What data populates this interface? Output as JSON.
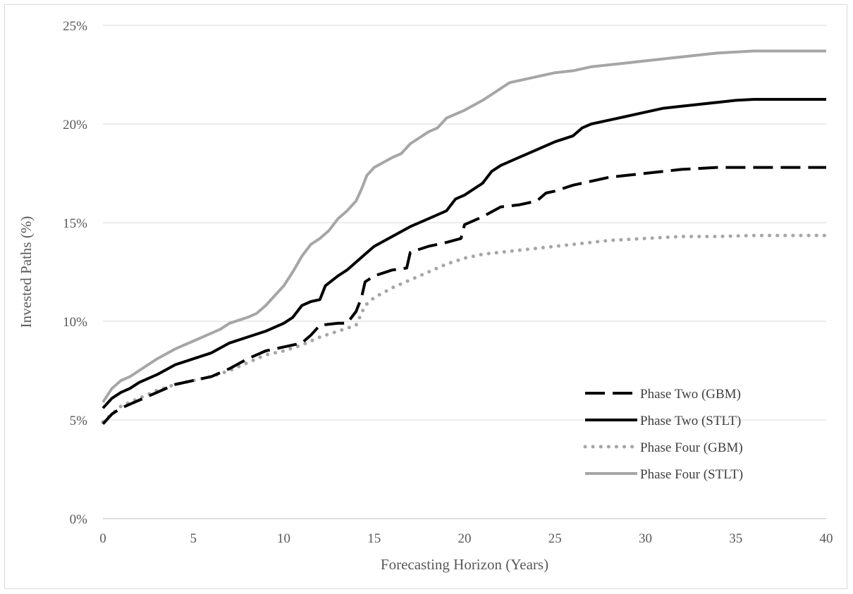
{
  "chart_data": {
    "type": "line",
    "title": "",
    "xlabel": "Forecasting Horizon (Years)",
    "ylabel": "Invested Paths (%)",
    "xlim": [
      0,
      40
    ],
    "ylim": [
      0,
      25
    ],
    "xticks": [
      0,
      5,
      10,
      15,
      20,
      25,
      30,
      35,
      40
    ],
    "xtick_labels": [
      "0",
      "5",
      "10",
      "15",
      "20",
      "25",
      "30",
      "35",
      "40"
    ],
    "yticks": [
      0,
      5,
      10,
      15,
      20,
      25
    ],
    "ytick_labels": [
      "0%",
      "5%",
      "10%",
      "15%",
      "20%",
      "25%"
    ],
    "grid": "horizontal",
    "legend_position": "bottom-right",
    "series": [
      {
        "name": "Phase Two (GBM)",
        "color": "#000000",
        "style": "dash",
        "x": [
          0,
          0.5,
          1,
          1.5,
          2,
          3,
          4,
          5,
          6,
          7,
          8,
          9,
          10,
          11,
          11.5,
          12,
          13,
          13.5,
          14,
          14.3,
          14.5,
          15,
          16,
          16.8,
          17,
          18,
          19,
          19.8,
          20,
          21,
          22,
          23,
          24,
          24.5,
          25,
          26,
          27,
          28,
          29,
          30,
          32,
          34,
          36,
          38,
          40
        ],
        "values": [
          4.8,
          5.3,
          5.6,
          5.8,
          6.0,
          6.4,
          6.8,
          7.0,
          7.2,
          7.6,
          8.1,
          8.5,
          8.7,
          8.9,
          9.3,
          9.8,
          9.9,
          9.9,
          10.5,
          11.2,
          12.0,
          12.3,
          12.6,
          12.7,
          13.5,
          13.8,
          14.0,
          14.2,
          14.9,
          15.3,
          15.8,
          15.9,
          16.1,
          16.5,
          16.6,
          16.9,
          17.1,
          17.3,
          17.4,
          17.5,
          17.7,
          17.8,
          17.8,
          17.8,
          17.8
        ]
      },
      {
        "name": "Phase Two (STLT)",
        "color": "#000000",
        "style": "solid",
        "x": [
          0,
          0.5,
          1,
          1.5,
          2,
          3,
          4,
          5,
          6,
          7,
          8,
          9,
          10,
          10.5,
          11,
          11.5,
          12,
          12.3,
          13,
          13.5,
          14,
          14.5,
          15,
          16,
          17,
          18,
          19,
          19.5,
          20,
          21,
          21.5,
          22,
          23,
          24,
          25,
          26,
          26.5,
          27,
          28,
          29,
          30,
          31,
          32,
          33,
          34,
          35,
          36,
          38,
          40
        ],
        "values": [
          5.6,
          6.1,
          6.4,
          6.6,
          6.9,
          7.3,
          7.8,
          8.1,
          8.4,
          8.9,
          9.2,
          9.5,
          9.9,
          10.2,
          10.8,
          11.0,
          11.1,
          11.8,
          12.3,
          12.6,
          13.0,
          13.4,
          13.8,
          14.3,
          14.8,
          15.2,
          15.6,
          16.2,
          16.4,
          17.0,
          17.6,
          17.9,
          18.3,
          18.7,
          19.1,
          19.4,
          19.8,
          20.0,
          20.2,
          20.4,
          20.6,
          20.8,
          20.9,
          21.0,
          21.1,
          21.2,
          21.25,
          21.25,
          21.25
        ]
      },
      {
        "name": "Phase Four (GBM)",
        "color": "#a6a6a6",
        "style": "dot",
        "x": [
          0,
          0.5,
          1,
          2,
          3,
          4,
          5,
          6,
          7,
          8,
          9,
          10,
          11,
          12,
          13,
          14,
          14.5,
          15,
          16,
          17,
          18,
          19,
          20,
          21,
          22,
          23,
          24,
          25,
          26,
          27,
          28,
          30,
          32,
          34,
          36,
          38,
          40
        ],
        "values": [
          4.9,
          5.3,
          5.7,
          6.1,
          6.5,
          6.8,
          7.0,
          7.2,
          7.5,
          7.9,
          8.3,
          8.5,
          8.8,
          9.2,
          9.5,
          9.8,
          10.8,
          11.2,
          11.7,
          12.1,
          12.5,
          12.9,
          13.2,
          13.4,
          13.5,
          13.6,
          13.7,
          13.8,
          13.9,
          14.0,
          14.1,
          14.2,
          14.3,
          14.3,
          14.35,
          14.35,
          14.35
        ]
      },
      {
        "name": "Phase Four (STLT)",
        "color": "#a6a6a6",
        "style": "solid",
        "x": [
          0,
          0.5,
          1,
          1.5,
          2,
          3,
          4,
          5,
          6,
          6.5,
          7,
          8,
          8.5,
          9,
          9.5,
          10,
          10.5,
          11,
          11.5,
          12,
          12.5,
          13,
          13.5,
          14,
          14.3,
          14.6,
          15,
          16,
          16.5,
          17,
          18,
          18.5,
          19,
          20,
          21,
          22,
          22.5,
          23,
          24,
          25,
          26,
          27,
          28,
          29,
          30,
          32,
          34,
          36,
          38,
          40
        ],
        "values": [
          5.9,
          6.6,
          7.0,
          7.2,
          7.5,
          8.1,
          8.6,
          9.0,
          9.4,
          9.6,
          9.9,
          10.2,
          10.4,
          10.8,
          11.3,
          11.8,
          12.5,
          13.3,
          13.9,
          14.2,
          14.6,
          15.2,
          15.6,
          16.1,
          16.7,
          17.4,
          17.8,
          18.3,
          18.5,
          19.0,
          19.6,
          19.8,
          20.3,
          20.7,
          21.2,
          21.8,
          22.1,
          22.2,
          22.4,
          22.6,
          22.7,
          22.9,
          23.0,
          23.1,
          23.2,
          23.4,
          23.6,
          23.7,
          23.7,
          23.7
        ]
      }
    ]
  }
}
